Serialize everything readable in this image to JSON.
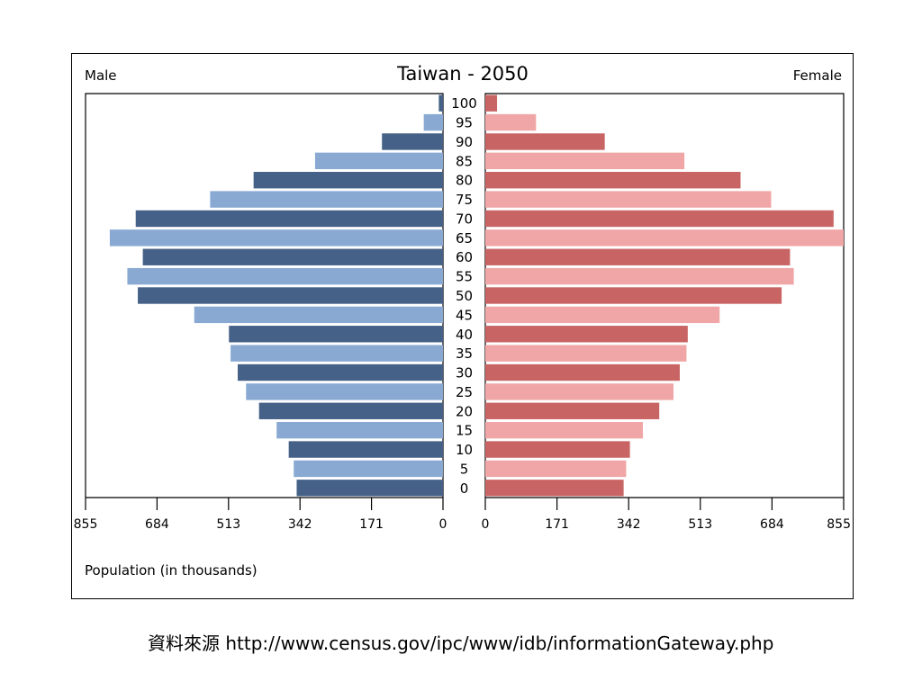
{
  "chart_data": {
    "type": "bar",
    "title": "Taiwan - 2050",
    "left_label": "Male",
    "right_label": "Female",
    "xlabel": "Population (in thousands)",
    "xlim": [
      0,
      855
    ],
    "x_ticks_left": [
      "855",
      "684",
      "513",
      "342",
      "171",
      "0"
    ],
    "x_ticks_right": [
      "0",
      "171",
      "342",
      "513",
      "684",
      "855"
    ],
    "categories": [
      "100",
      "95",
      "90",
      "85",
      "80",
      "75",
      "70",
      "65",
      "60",
      "55",
      "50",
      "45",
      "40",
      "35",
      "30",
      "25",
      "20",
      "15",
      "10",
      "5",
      "0"
    ],
    "series": [
      {
        "name": "Male",
        "colors": [
          "#456187",
          "#89a9d3"
        ],
        "values": [
          10,
          46,
          146,
          306,
          453,
          557,
          735,
          797,
          718,
          755,
          730,
          595,
          512,
          508,
          491,
          471,
          440,
          398,
          369,
          357,
          350
        ]
      },
      {
        "name": "Female",
        "colors": [
          "#c96464",
          "#f0a6a6"
        ],
        "values": [
          28,
          121,
          285,
          475,
          609,
          682,
          831,
          855,
          727,
          736,
          707,
          559,
          483,
          480,
          464,
          449,
          415,
          376,
          345,
          336,
          330
        ]
      }
    ]
  },
  "source": {
    "label": "資料來源",
    "url": "http://www.census.gov/ipc/www/idb/informationGateway.php"
  }
}
